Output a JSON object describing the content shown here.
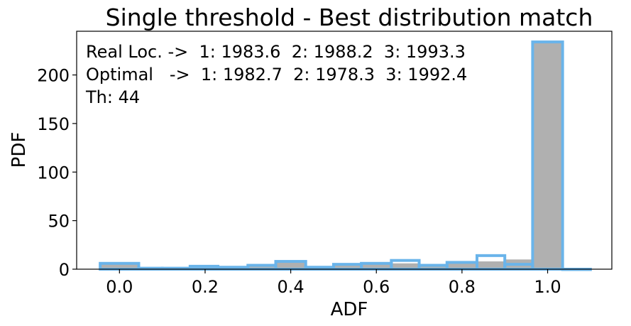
{
  "chart_data": {
    "type": "bar",
    "title": "Single threshold - Best distribution match",
    "xlabel": "ADF",
    "ylabel": "PDF",
    "xlim": [
      -0.1,
      1.15
    ],
    "ylim": [
      0,
      245
    ],
    "x_ticks": [
      "0.0",
      "0.2",
      "0.4",
      "0.6",
      "0.8",
      "1.0"
    ],
    "y_ticks": [
      "0",
      "50",
      "100",
      "150",
      "200"
    ],
    "grid": false,
    "bin_edges": [
      -0.045,
      0.045,
      0.1,
      0.165,
      0.23,
      0.3,
      0.365,
      0.435,
      0.5,
      0.565,
      0.635,
      0.7,
      0.765,
      0.835,
      0.9,
      0.965,
      1.035,
      1.1
    ],
    "series": [
      {
        "style": "filled",
        "color": "#b0b0b0",
        "values": [
          5,
          1,
          1,
          2,
          2,
          4,
          7,
          2,
          4,
          7,
          6,
          4,
          6,
          8,
          10,
          233,
          0
        ]
      },
      {
        "style": "step",
        "color": "#6ab4ea",
        "values": [
          6,
          1,
          1,
          3,
          2,
          4,
          8,
          2,
          5,
          6,
          9,
          4,
          7,
          14,
          5,
          234,
          0
        ]
      }
    ],
    "annotations": [
      "Real Loc. ->  1: 1983.6  2: 1988.2  3: 1993.3",
      "Optimal   ->  1: 1982.7  2: 1978.3  3: 1992.4",
      "Th: 44"
    ]
  }
}
